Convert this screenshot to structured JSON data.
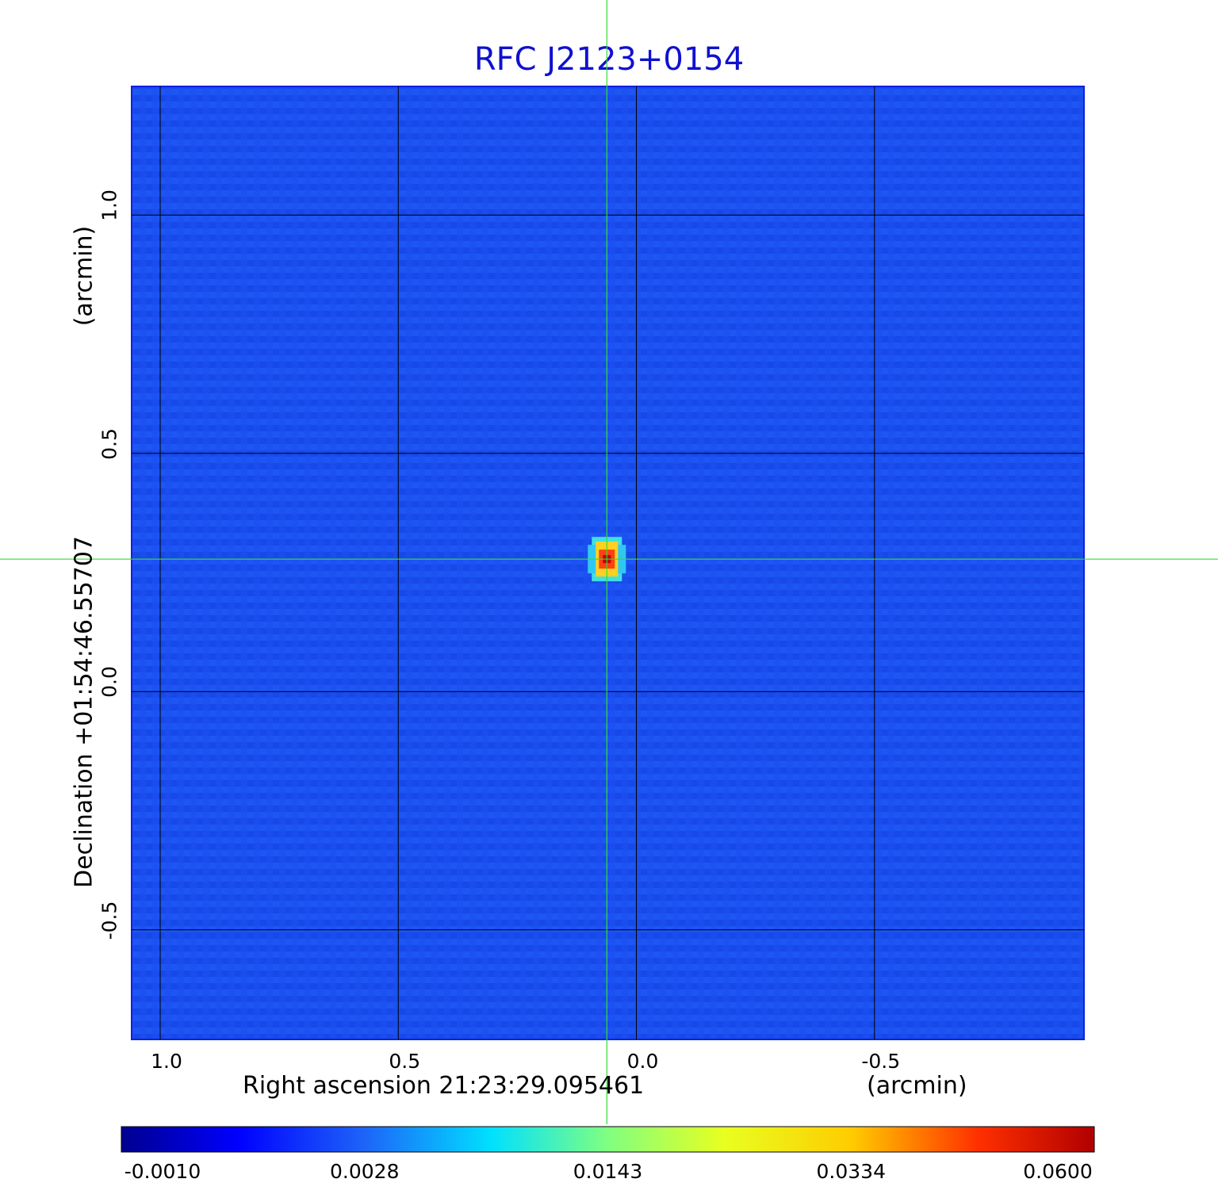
{
  "chart_data": {
    "type": "heatmap",
    "title": "RFC J2123+0154",
    "xlabel": "Right ascension  21:23:29.095461",
    "xunit": "(arcmin)",
    "ylabel": "Declination  +01:54:46.55707",
    "yunit": "(arcmin)",
    "xlim": [
      1.06,
      -0.94
    ],
    "ylim": [
      -0.73,
      1.27
    ],
    "x_ticks": [
      {
        "value": 1.0,
        "label": "1.0"
      },
      {
        "value": 0.5,
        "label": "0.5"
      },
      {
        "value": 0.0,
        "label": "0.0"
      },
      {
        "value": -0.5,
        "label": "-0.5"
      }
    ],
    "y_ticks": [
      {
        "value": 1.0,
        "label": "1.0"
      },
      {
        "value": 0.5,
        "label": "0.5"
      },
      {
        "value": 0.0,
        "label": "0.0"
      },
      {
        "value": -0.5,
        "label": "-0.5"
      }
    ],
    "grid": true,
    "colormap": "jet",
    "source_peak": {
      "x": 0.062,
      "y": 0.278
    },
    "crosshair": {
      "x": 0.062,
      "y": 0.278,
      "color": "#33dd33"
    },
    "colorbar": {
      "ticks": [
        "-0.0010",
        "0.0028",
        "0.0143",
        "0.0334",
        "0.0600"
      ]
    }
  }
}
